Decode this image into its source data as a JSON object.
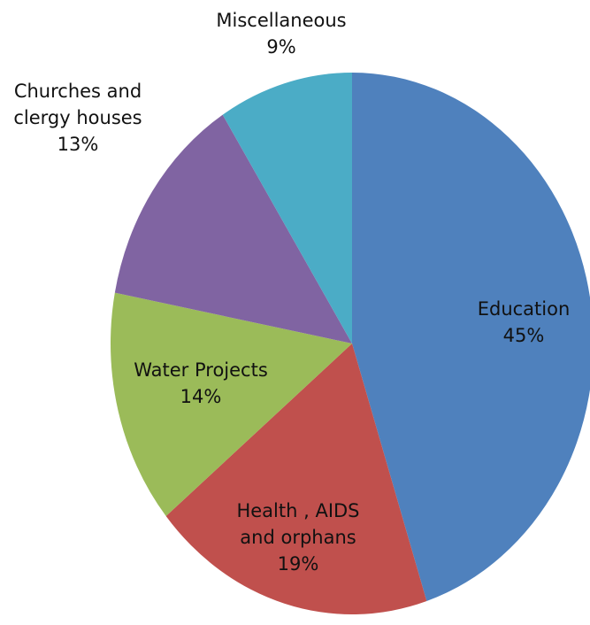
{
  "chart_data": {
    "type": "pie",
    "title": "",
    "legend": "none",
    "slices": [
      {
        "label": [
          "Education"
        ],
        "value": 45,
        "pct_text": "45%",
        "color": "#4F81BD"
      },
      {
        "label": [
          "Health , AIDS",
          "and orphans"
        ],
        "value": 19,
        "pct_text": "19%",
        "color": "#C0504D"
      },
      {
        "label": [
          "Water Projects"
        ],
        "value": 14,
        "pct_text": "14%",
        "color": "#9BBB59"
      },
      {
        "label": [
          "Churches and",
          "clergy houses"
        ],
        "value": 13,
        "pct_text": "13%",
        "color": "#8064A2"
      },
      {
        "label": [
          "Miscellaneous"
        ],
        "value": 9,
        "pct_text": "9%",
        "color": "#4BACC6"
      }
    ]
  }
}
